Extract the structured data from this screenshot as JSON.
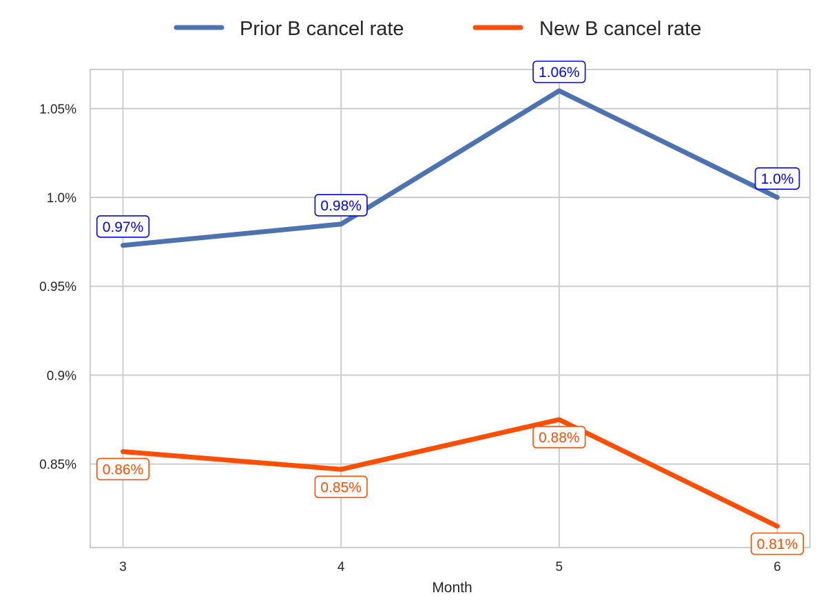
{
  "chart_data": {
    "type": "line",
    "title": "",
    "xlabel": "Month",
    "ylabel": "",
    "categories": [
      3,
      4,
      5,
      6
    ],
    "x_tick_labels": [
      "3",
      "4",
      "5",
      "6"
    ],
    "y_ticks": [
      0.85,
      0.9,
      0.95,
      1.0,
      1.05
    ],
    "y_tick_labels": [
      "0.85%",
      "0.9%",
      "0.95%",
      "1.0%",
      "1.05%"
    ],
    "ylim": [
      0.803,
      1.072
    ],
    "xlim": [
      2.85,
      6.15
    ],
    "grid": true,
    "legend_position": "top-center",
    "series": [
      {
        "name": "Prior B cancel rate",
        "color": "#4c72b0",
        "label_color": "#0000ff",
        "label_position": "above",
        "values": [
          0.973,
          0.985,
          1.06,
          1.0
        ],
        "data_labels": [
          "0.97%",
          "0.98%",
          "1.06%",
          "1.0%"
        ]
      },
      {
        "name": "New B cancel rate",
        "color": "#ff4e00",
        "label_color": "#ff4e00",
        "label_position": "below",
        "values": [
          0.857,
          0.847,
          0.875,
          0.815
        ],
        "data_labels": [
          "0.86%",
          "0.85%",
          "0.88%",
          "0.81%"
        ]
      }
    ]
  }
}
